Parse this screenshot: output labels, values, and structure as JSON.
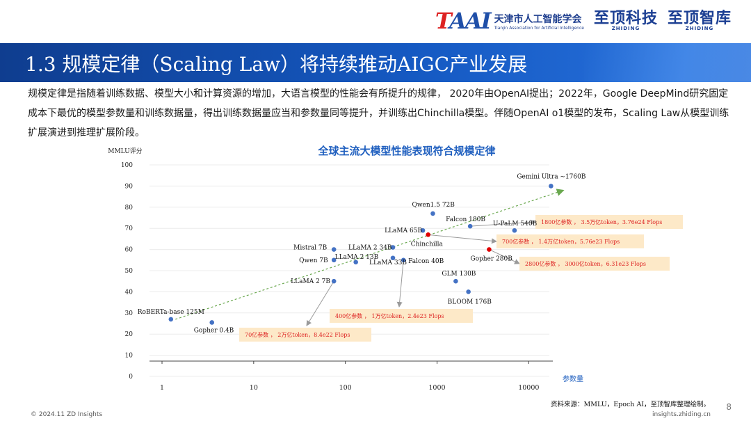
{
  "header": {
    "tai_logo_cn": "天津市人工智能学会",
    "tai_logo_en": "Tianjin Association for Artificial Intelligence",
    "brand1_cn": "至顶科技",
    "brand1_en": "ZHIDING",
    "brand2_cn": "至顶智库",
    "brand2_en": "ZHIDING"
  },
  "title": "1.3 规模定律（Scaling Law）将持续推动AIGC产业发展",
  "intro": "规模定律是指随着训练数据、模型大小和计算资源的增加，大语言模型的性能会有所提升的规律， 2020年由OpenAI提出；2022年，Google DeepMind研究固定成本下最优的模型参数量和训练数据量，得出训练数据量应当和参数量同等提升，并训练出Chinchilla模型。伴随OpenAI o1模型的发布，Scaling Law从模型训练扩展演进到推理扩展阶段。",
  "chart_data": {
    "type": "scatter",
    "title": "全球主流大模型性能表现符合规模定律",
    "ylabel": "MMLU评分",
    "xlabel": "参数量",
    "x_scale": "log",
    "xlim": [
      1,
      20000
    ],
    "ylim": [
      0,
      100
    ],
    "x_ticks": [
      1,
      10,
      100,
      1000,
      10000
    ],
    "y_ticks": [
      0,
      10,
      20,
      30,
      40,
      50,
      60,
      70,
      80,
      90,
      100
    ],
    "grid": true,
    "points": [
      {
        "label": "RoBERTa-base 125M",
        "x": 1.25,
        "y": 27,
        "color": "#4472c4"
      },
      {
        "label": "Gopher 0.4B",
        "x": 3.5,
        "y": 25.5,
        "color": "#4472c4"
      },
      {
        "label": "LLaMA 2 7B",
        "x": 75,
        "y": 45,
        "color": "#4472c4"
      },
      {
        "label": "Mistral 7B",
        "x": 75,
        "y": 60,
        "color": "#4472c4"
      },
      {
        "label": "Qwen 7B",
        "x": 75,
        "y": 55,
        "color": "#4472c4"
      },
      {
        "label": "LLaMA 2 13B",
        "x": 130,
        "y": 54,
        "color": "#4472c4"
      },
      {
        "label": "LLaMA 2 34B",
        "x": 330,
        "y": 61,
        "color": "#4472c4"
      },
      {
        "label": "LLaMA 33B",
        "x": 330,
        "y": 56,
        "color": "#4472c4"
      },
      {
        "label": "Falcon 40B",
        "x": 430,
        "y": 55,
        "color": "#4472c4"
      },
      {
        "label": "LLaMA 65B",
        "x": 700,
        "y": 69,
        "color": "#4472c4"
      },
      {
        "label": "Qwen1.5 72B",
        "x": 900,
        "y": 77,
        "color": "#4472c4"
      },
      {
        "label": "Chinchilla",
        "x": 800,
        "y": 67,
        "color": "#e00000"
      },
      {
        "label": "Falcon 180B",
        "x": 2300,
        "y": 71,
        "color": "#4472c4"
      },
      {
        "label": "U-PaLM 540B",
        "x": 7000,
        "y": 69,
        "color": "#4472c4"
      },
      {
        "label": "Gopher 280B",
        "x": 3700,
        "y": 60,
        "color": "#e00000"
      },
      {
        "label": "GLM 130B",
        "x": 1600,
        "y": 45,
        "color": "#4472c4"
      },
      {
        "label": "BLOOM 176B",
        "x": 2200,
        "y": 40,
        "color": "#4472c4"
      },
      {
        "label": "Gemini Ultra  ~1760B",
        "x": 17500,
        "y": 90,
        "color": "#4472c4"
      }
    ],
    "trend": {
      "from": [
        1.4,
        27
      ],
      "to": [
        24000,
        88
      ]
    },
    "annotations": [
      {
        "text": "1800亿参数 ， 3.5万亿token，3.76e24 Flops"
      },
      {
        "text": "700亿参数 ， 1.4万亿token，5.76e23 Flops"
      },
      {
        "text": "2800亿参数 ， 3000亿token，6.31e23 Flops"
      },
      {
        "text": "400亿参数 ， 1万亿token，2.4e23 Flops"
      },
      {
        "text": "70亿参数 ， 2万亿token，8.4e22 Flops"
      }
    ],
    "source": "资料来源：MMLU，Epoch AI，至顶智库整理绘制。"
  },
  "footer": {
    "copyright": "© 2024.11 ZD Insights",
    "site": "insights.zhiding.cn",
    "page": "8"
  }
}
